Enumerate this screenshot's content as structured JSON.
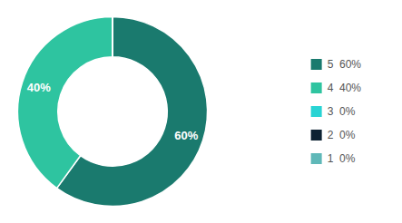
{
  "chart_data": {
    "type": "pie",
    "categories": [
      "5  60%",
      "4  40%",
      "3  0%",
      "2  0%",
      "1  0%"
    ],
    "values": [
      60,
      40,
      0,
      0,
      0
    ],
    "value_labels": [
      "60%",
      "40%",
      null,
      null,
      null
    ],
    "colors": [
      "#1a7a6e",
      "#2ec4a0",
      "#29d4d4",
      "#0d2233",
      "#5fb8b8"
    ],
    "data_labels": true,
    "legend": "right"
  }
}
